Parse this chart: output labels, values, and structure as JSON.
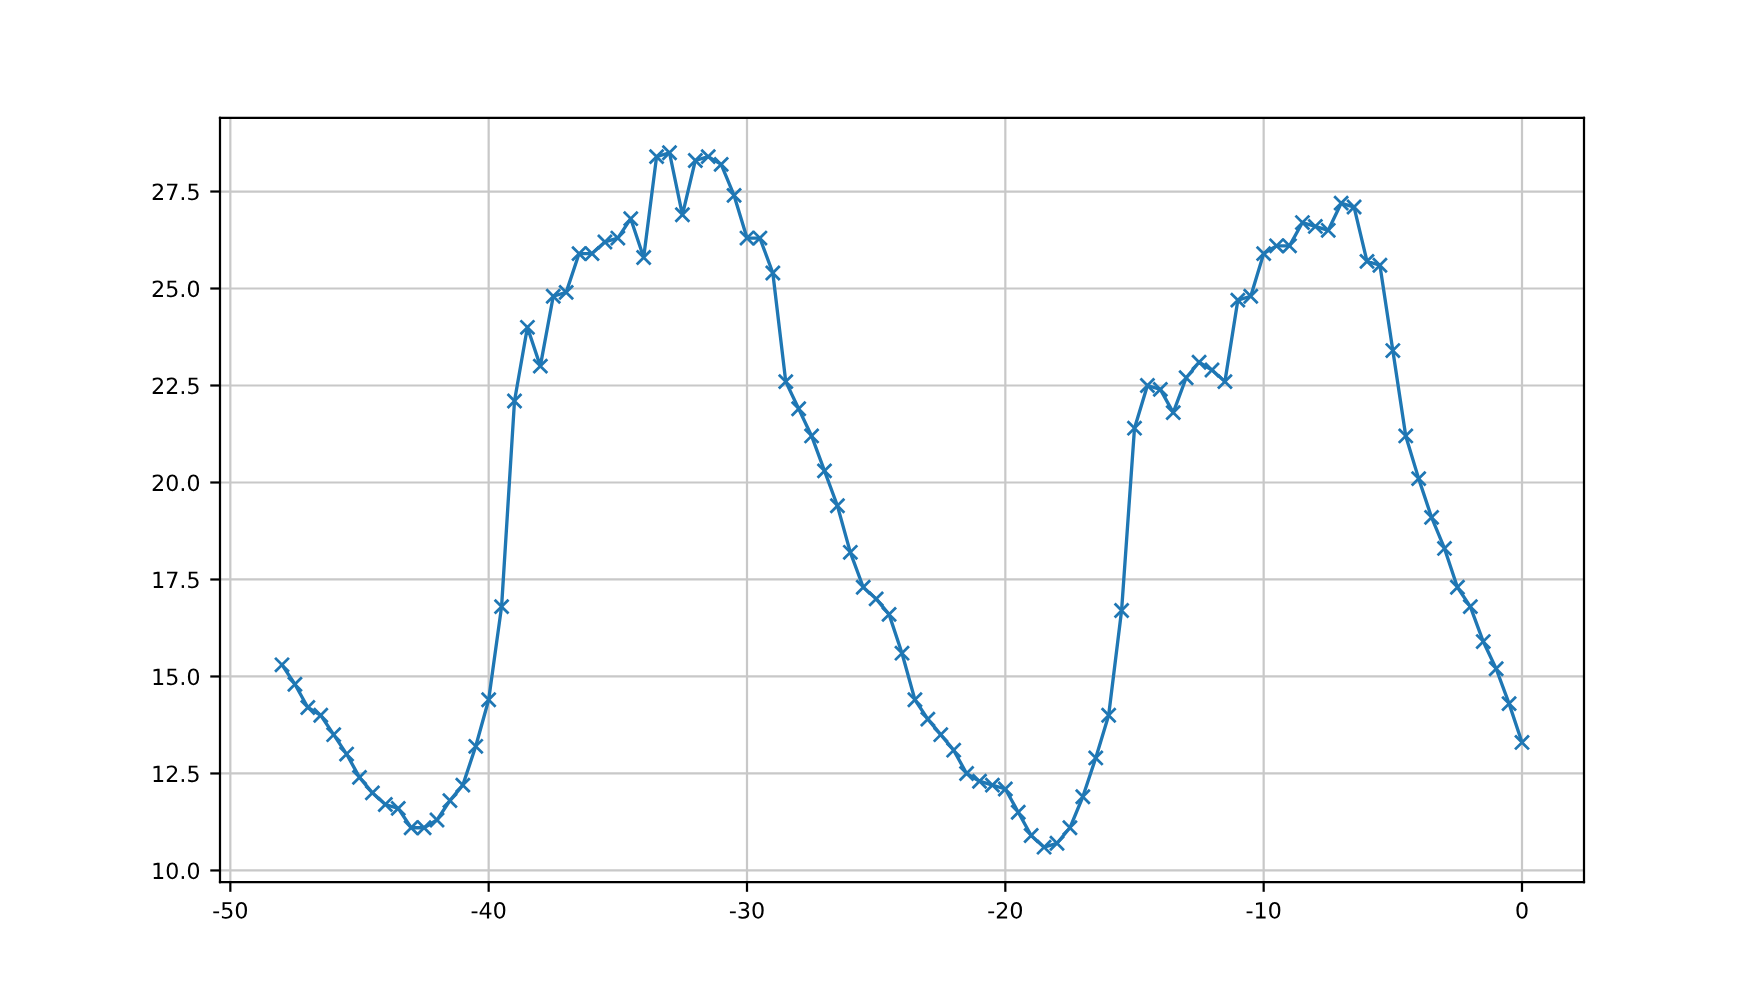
{
  "chart_data": {
    "type": "line",
    "marker": "cross",
    "line_style": "solid",
    "grid": true,
    "xlim": [
      -50.4,
      2.4
    ],
    "xticks": [
      -50,
      -40,
      -30,
      -20,
      -10,
      0
    ],
    "ylim": [
      9.7,
      29.4
    ],
    "yticks": [
      {
        "value": 10,
        "label": "10.0"
      },
      12.5,
      {
        "value": 15,
        "label": "15.0"
      },
      17.5,
      {
        "value": 20,
        "label": "20.0"
      },
      22.5,
      {
        "value": 25,
        "label": "25.0"
      },
      27.5
    ],
    "x": [
      -48,
      -47.5,
      -47,
      -46.5,
      -46,
      -45.5,
      -45,
      -44.5,
      -44,
      -43.5,
      -43,
      -42.5,
      -42,
      -41.5,
      -41,
      -40.5,
      -40,
      -39.5,
      -39,
      -38.5,
      -38,
      -37.5,
      -37,
      -36.5,
      -36,
      -35.5,
      -35,
      -34.5,
      -34,
      -33.5,
      -33,
      -32.5,
      -32,
      -31.5,
      -31,
      -30.5,
      -30,
      -29.5,
      -29,
      -28.5,
      -28,
      -27.5,
      -27,
      -26.5,
      -26,
      -25.5,
      -25,
      -24.5,
      -24,
      -23.5,
      -23,
      -22.5,
      -22,
      -21.5,
      -21,
      -20.5,
      -20,
      -19.5,
      -19,
      -18.5,
      -18,
      -17.5,
      -17,
      -16.5,
      -16,
      -15.5,
      -15,
      -14.5,
      -14,
      -13.5,
      -13,
      -12.5,
      -12,
      -11.5,
      -11,
      -10.5,
      -10,
      -9.5,
      -9,
      -8.5,
      -8,
      -7.5,
      -7,
      -6.5,
      -6,
      -5.5,
      -5,
      -4.5,
      -4,
      -3.5,
      -3,
      -2.5,
      -2,
      -1.5,
      -1,
      -0.5,
      0
    ],
    "series": [
      {
        "color": "#1f77b4",
        "values": [
          15.3,
          14.8,
          14.2,
          14.0,
          13.5,
          13.0,
          12.4,
          12.0,
          11.7,
          11.6,
          11.1,
          11.1,
          11.3,
          11.8,
          12.2,
          13.2,
          14.4,
          16.8,
          22.1,
          24.0,
          23.0,
          24.8,
          24.9,
          25.9,
          25.9,
          26.2,
          26.3,
          26.8,
          25.8,
          28.4,
          28.5,
          26.9,
          28.3,
          28.4,
          28.2,
          27.4,
          26.3,
          26.3,
          25.4,
          22.6,
          21.9,
          21.2,
          20.3,
          19.4,
          18.2,
          17.3,
          17.0,
          16.6,
          15.6,
          14.4,
          13.9,
          13.5,
          13.1,
          12.5,
          12.3,
          12.2,
          12.1,
          11.5,
          10.9,
          10.6,
          10.7,
          11.1,
          11.9,
          12.9,
          14.0,
          16.7,
          21.4,
          22.5,
          22.4,
          21.8,
          22.7,
          23.1,
          22.9,
          22.6,
          24.7,
          24.8,
          25.9,
          26.1,
          26.1,
          26.7,
          26.6,
          26.5,
          27.2,
          27.1,
          25.7,
          25.6,
          23.4,
          21.2,
          20.1,
          19.1,
          18.3,
          17.3,
          16.8,
          15.9,
          15.2,
          14.3,
          13.3
        ]
      }
    ]
  }
}
